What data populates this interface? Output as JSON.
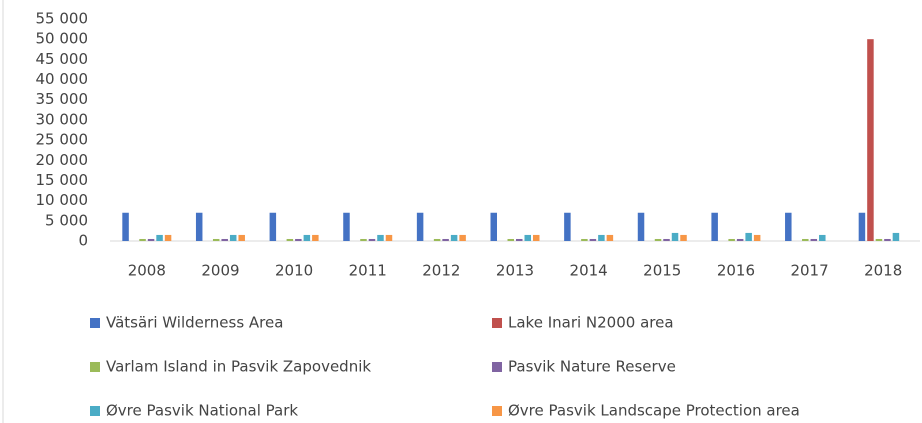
{
  "chart_data": {
    "type": "bar",
    "categories": [
      "2008",
      "2009",
      "2010",
      "2011",
      "2012",
      "2013",
      "2014",
      "2015",
      "2016",
      "2017",
      "2018"
    ],
    "series": [
      {
        "name": "Vätsäri Wilderness Area",
        "color": "#4472c4",
        "values": [
          7000,
          7000,
          7000,
          7000,
          7000,
          7000,
          7000,
          7000,
          7000,
          7000,
          7000
        ]
      },
      {
        "name": "Lake Inari N2000 area",
        "color": "#c0504d",
        "values": [
          null,
          null,
          null,
          null,
          null,
          null,
          null,
          null,
          null,
          null,
          50000
        ]
      },
      {
        "name": "Varlam Island in Pasvik Zapovednik",
        "color": "#9bbb59",
        "values": [
          500,
          500,
          500,
          500,
          500,
          500,
          500,
          500,
          500,
          500,
          500
        ]
      },
      {
        "name": "Pasvik Nature Reserve",
        "color": "#8064a2",
        "values": [
          500,
          500,
          500,
          500,
          500,
          500,
          500,
          500,
          500,
          500,
          500
        ]
      },
      {
        "name": "Øvre Pasvik National Park",
        "color": "#4bacc6",
        "values": [
          1500,
          1500,
          1500,
          1500,
          1500,
          1500,
          1500,
          2000,
          2000,
          1500,
          2000
        ]
      },
      {
        "name": "Øvre Pasvik Landscape Protection area",
        "color": "#f79646",
        "values": [
          1500,
          1500,
          1500,
          1500,
          1500,
          1500,
          1500,
          1500,
          1500,
          null,
          null
        ]
      }
    ],
    "ylim": [
      0,
      55000
    ],
    "yticks": [
      0,
      {
        "value": 5000,
        "label": "5 000"
      },
      {
        "value": 10000,
        "label": "10 000"
      },
      {
        "value": 15000,
        "label": "15 000"
      },
      {
        "value": 20000,
        "label": "20 000"
      },
      {
        "value": 25000,
        "label": "25 000"
      },
      {
        "value": 30000,
        "label": "30 000"
      },
      {
        "value": 35000,
        "label": "35 000"
      },
      {
        "value": 40000,
        "label": "40 000"
      },
      {
        "value": 45000,
        "label": "45 000"
      },
      {
        "value": 50000,
        "label": "50 000"
      },
      {
        "value": 55000,
        "label": "55 000"
      }
    ],
    "legend": "bottom"
  }
}
